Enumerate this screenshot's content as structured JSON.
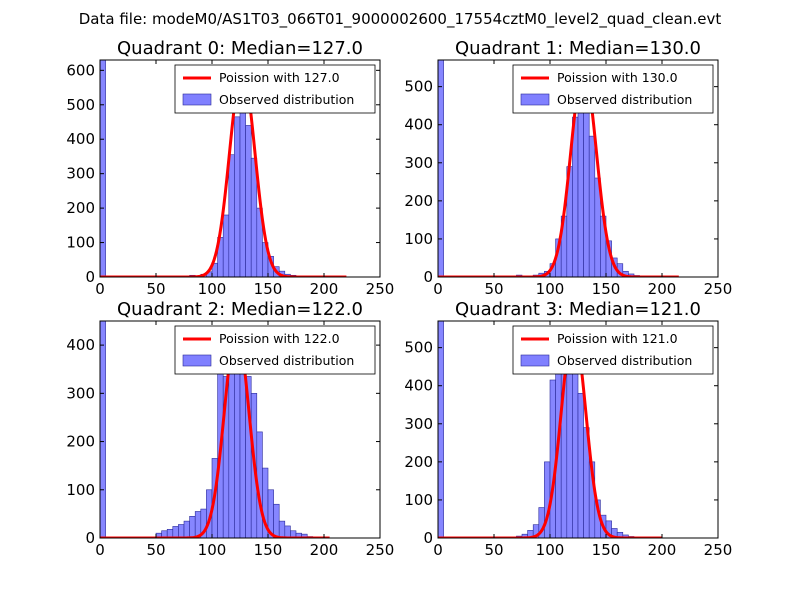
{
  "figure": {
    "suptitle": "Data file: modeM0/AS1T03_066T01_9000002600_17554cztM0_level2_quad_clean.evt"
  },
  "colors": {
    "bars_fill": "#8080ff",
    "bars_edge": "#2a2a9a",
    "poisson_line": "#ff0000",
    "axes": "#000000"
  },
  "chart_data": [
    {
      "type": "bar",
      "title": "Quadrant 0: Median=127.0",
      "xlabel": "",
      "ylabel": "",
      "xlim": [
        0,
        250
      ],
      "ylim": [
        0,
        630
      ],
      "xticks": [
        0,
        50,
        100,
        150,
        200,
        250
      ],
      "yticks": [
        0,
        100,
        200,
        300,
        400,
        500,
        600
      ],
      "bin_width": 5,
      "bins": [
        0,
        5,
        10,
        15,
        20,
        25,
        30,
        35,
        40,
        45,
        50,
        55,
        60,
        65,
        70,
        75,
        80,
        85,
        90,
        95,
        100,
        105,
        110,
        115,
        120,
        125,
        130,
        135,
        140,
        145,
        150,
        155,
        160,
        165,
        170,
        175,
        180,
        185,
        190,
        195
      ],
      "observed": [
        630,
        0,
        0,
        0,
        0,
        0,
        0,
        0,
        0,
        0,
        0,
        0,
        0,
        0,
        0,
        0,
        5,
        2,
        8,
        15,
        40,
        115,
        180,
        355,
        465,
        530,
        440,
        345,
        200,
        100,
        60,
        30,
        17,
        8,
        5,
        2,
        1,
        1,
        1,
        0
      ],
      "poisson": {
        "mean": 127.0,
        "peak": 600,
        "x_max": 220
      },
      "legend": [
        "Poission with 127.0",
        "Observed distribution"
      ],
      "legend_loc": "upper right"
    },
    {
      "type": "bar",
      "title": "Quadrant 1: Median=130.0",
      "xlabel": "",
      "ylabel": "",
      "xlim": [
        0,
        250
      ],
      "ylim": [
        0,
        570
      ],
      "xticks": [
        0,
        50,
        100,
        150,
        200,
        250
      ],
      "yticks": [
        0,
        100,
        200,
        300,
        400,
        500
      ],
      "bin_width": 5,
      "bins": [
        0,
        5,
        10,
        15,
        20,
        25,
        30,
        35,
        40,
        45,
        50,
        55,
        60,
        65,
        70,
        75,
        80,
        85,
        90,
        95,
        100,
        105,
        110,
        115,
        120,
        125,
        130,
        135,
        140,
        145,
        150,
        155,
        160,
        165,
        170,
        175,
        180,
        185,
        190,
        195
      ],
      "observed": [
        570,
        0,
        0,
        0,
        0,
        0,
        0,
        0,
        0,
        0,
        0,
        0,
        0,
        0,
        5,
        0,
        3,
        5,
        10,
        15,
        35,
        100,
        160,
        290,
        420,
        520,
        440,
        370,
        260,
        160,
        95,
        50,
        35,
        15,
        8,
        4,
        2,
        1,
        1,
        0
      ],
      "poisson": {
        "mean": 130.0,
        "peak": 545,
        "x_max": 215
      },
      "legend": [
        "Poission with 130.0",
        "Observed distribution"
      ],
      "legend_loc": "upper right"
    },
    {
      "type": "bar",
      "title": "Quadrant 2: Median=122.0",
      "xlabel": "",
      "ylabel": "",
      "xlim": [
        0,
        250
      ],
      "ylim": [
        0,
        450
      ],
      "xticks": [
        0,
        50,
        100,
        150,
        200,
        250
      ],
      "yticks": [
        0,
        100,
        200,
        300,
        400
      ],
      "bin_width": 5,
      "bins": [
        0,
        5,
        10,
        15,
        20,
        25,
        30,
        35,
        40,
        45,
        50,
        55,
        60,
        65,
        70,
        75,
        80,
        85,
        90,
        95,
        100,
        105,
        110,
        115,
        120,
        125,
        130,
        135,
        140,
        145,
        150,
        155,
        160,
        165,
        170,
        175,
        180,
        185,
        190,
        195
      ],
      "observed": [
        450,
        0,
        0,
        0,
        0,
        0,
        0,
        0,
        0,
        0,
        10,
        15,
        18,
        24,
        28,
        35,
        45,
        55,
        60,
        100,
        165,
        360,
        335,
        355,
        385,
        350,
        335,
        300,
        220,
        145,
        100,
        70,
        35,
        25,
        15,
        10,
        8,
        3,
        2,
        0
      ],
      "poisson": {
        "mean": 122.0,
        "peak": 430,
        "x_max": 205
      },
      "legend": [
        "Poission with 122.0",
        "Observed distribution"
      ],
      "legend_loc": "upper right"
    },
    {
      "type": "bar",
      "title": "Quadrant 3: Median=121.0",
      "xlabel": "",
      "ylabel": "",
      "xlim": [
        0,
        250
      ],
      "ylim": [
        0,
        570
      ],
      "xticks": [
        0,
        50,
        100,
        150,
        200,
        250
      ],
      "yticks": [
        0,
        100,
        200,
        300,
        400,
        500
      ],
      "bin_width": 5,
      "bins": [
        0,
        5,
        10,
        15,
        20,
        25,
        30,
        35,
        40,
        45,
        50,
        55,
        60,
        65,
        70,
        75,
        80,
        85,
        90,
        95,
        100,
        105,
        110,
        115,
        120,
        125,
        130,
        135,
        140,
        145,
        150,
        155,
        160,
        165,
        170,
        175,
        180,
        185,
        190,
        195
      ],
      "observed": [
        570,
        0,
        0,
        0,
        0,
        0,
        0,
        0,
        0,
        0,
        0,
        0,
        0,
        0,
        5,
        10,
        20,
        35,
        80,
        200,
        415,
        500,
        545,
        540,
        470,
        380,
        290,
        200,
        100,
        60,
        45,
        25,
        15,
        8,
        4,
        2,
        1,
        0,
        0,
        0
      ],
      "poisson": {
        "mean": 121.0,
        "peak": 545,
        "x_max": 200
      },
      "legend": [
        "Poission with 121.0",
        "Observed distribution"
      ],
      "legend_loc": "upper right"
    }
  ]
}
